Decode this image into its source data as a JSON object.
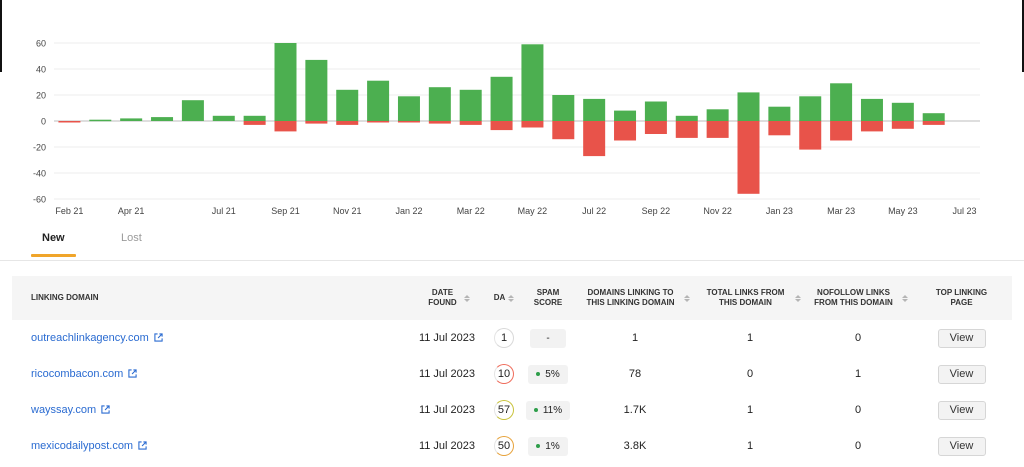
{
  "chart_data": {
    "type": "bar",
    "categories": [
      "Feb 21",
      "Mar 21",
      "Apr 21",
      "May 21",
      "Jun 21",
      "Jul 21",
      "Aug 21",
      "Sep 21",
      "Oct 21",
      "Nov 21",
      "Dec 21",
      "Jan 22",
      "Feb 22",
      "Mar 22",
      "Apr 22",
      "May 22",
      "Jun 22",
      "Jul 22",
      "Aug 22",
      "Sep 22",
      "Oct 22",
      "Nov 22",
      "Dec 22",
      "Jan 23",
      "Feb 23",
      "Mar 23",
      "Apr 23",
      "May 23",
      "Jun 23",
      "Jul 23"
    ],
    "x_tick_labels": [
      "Feb 21",
      "Apr 21",
      "Jul 21",
      "Sep 21",
      "Nov 21",
      "Jan 22",
      "Mar 22",
      "May 22",
      "Jul 22",
      "Sep 22",
      "Nov 22",
      "Jan 23",
      "Mar 23",
      "May 23",
      "Jul 23"
    ],
    "series": [
      {
        "name": "New",
        "color": "#4caf50",
        "values": [
          0,
          1,
          2,
          3,
          16,
          4,
          4,
          60,
          47,
          24,
          31,
          19,
          26,
          24,
          34,
          59,
          20,
          17,
          8,
          15,
          4,
          9,
          22,
          11,
          19,
          29,
          17,
          14,
          6,
          0
        ]
      },
      {
        "name": "Lost",
        "color": "#e8534a",
        "values": [
          -1,
          0,
          0,
          0,
          0,
          0,
          -3,
          -8,
          -2,
          -3,
          -1,
          -1,
          -2,
          -3,
          -7,
          -5,
          -14,
          -27,
          -15,
          -10,
          -13,
          -13,
          -56,
          -11,
          -22,
          -15,
          -8,
          -6,
          -3,
          0
        ]
      }
    ],
    "yticks": [
      60,
      40,
      20,
      0,
      -20,
      -40,
      -60
    ],
    "ylim": [
      -60,
      60
    ],
    "grid": true,
    "title": "",
    "xlabel": "",
    "ylabel": ""
  },
  "tabs": [
    {
      "label": "New",
      "active": true
    },
    {
      "label": "Lost",
      "active": false
    }
  ],
  "colors": {
    "accent": "#f0a52a",
    "link": "#2a6bd1",
    "spam_good": "#2e9e4a"
  },
  "table": {
    "headers": {
      "linking_domain": "LINKING DOMAIN",
      "date_found": "DATE FOUND",
      "da": "DA",
      "spam_score": "SPAM SCORE",
      "domains_linking": "DOMAINS LINKING TO THIS LINKING DOMAIN",
      "total_links": "TOTAL LINKS FROM THIS DOMAIN",
      "nofollow_links": "NOFOLLOW LINKS FROM THIS DOMAIN",
      "top_linking_page": "TOP LINKING PAGE"
    },
    "rows": [
      {
        "domain": "outreachlinkagency.com",
        "date": "11 Jul 2023",
        "da": "1",
        "da_color": "#d8d8d8",
        "spam": "-",
        "spam_dot": false,
        "domains_linking": "1",
        "total_links": "1",
        "nofollow": "0",
        "action": "View"
      },
      {
        "domain": "ricocombacon.com",
        "date": "11 Jul 2023",
        "da": "10",
        "da_color": "#ef6b5a",
        "spam": "5%",
        "spam_dot": true,
        "domains_linking": "78",
        "total_links": "0",
        "nofollow": "1",
        "action": "View"
      },
      {
        "domain": "wayssay.com",
        "date": "11 Jul 2023",
        "da": "57",
        "da_color": "#c8c23a",
        "spam": "11%",
        "spam_dot": true,
        "domains_linking": "1.7K",
        "total_links": "1",
        "nofollow": "0",
        "action": "View"
      },
      {
        "domain": "mexicodailypost.com",
        "date": "11 Jul 2023",
        "da": "50",
        "da_color": "#e7a23a",
        "spam": "1%",
        "spam_dot": true,
        "domains_linking": "3.8K",
        "total_links": "1",
        "nofollow": "0",
        "action": "View"
      }
    ]
  }
}
